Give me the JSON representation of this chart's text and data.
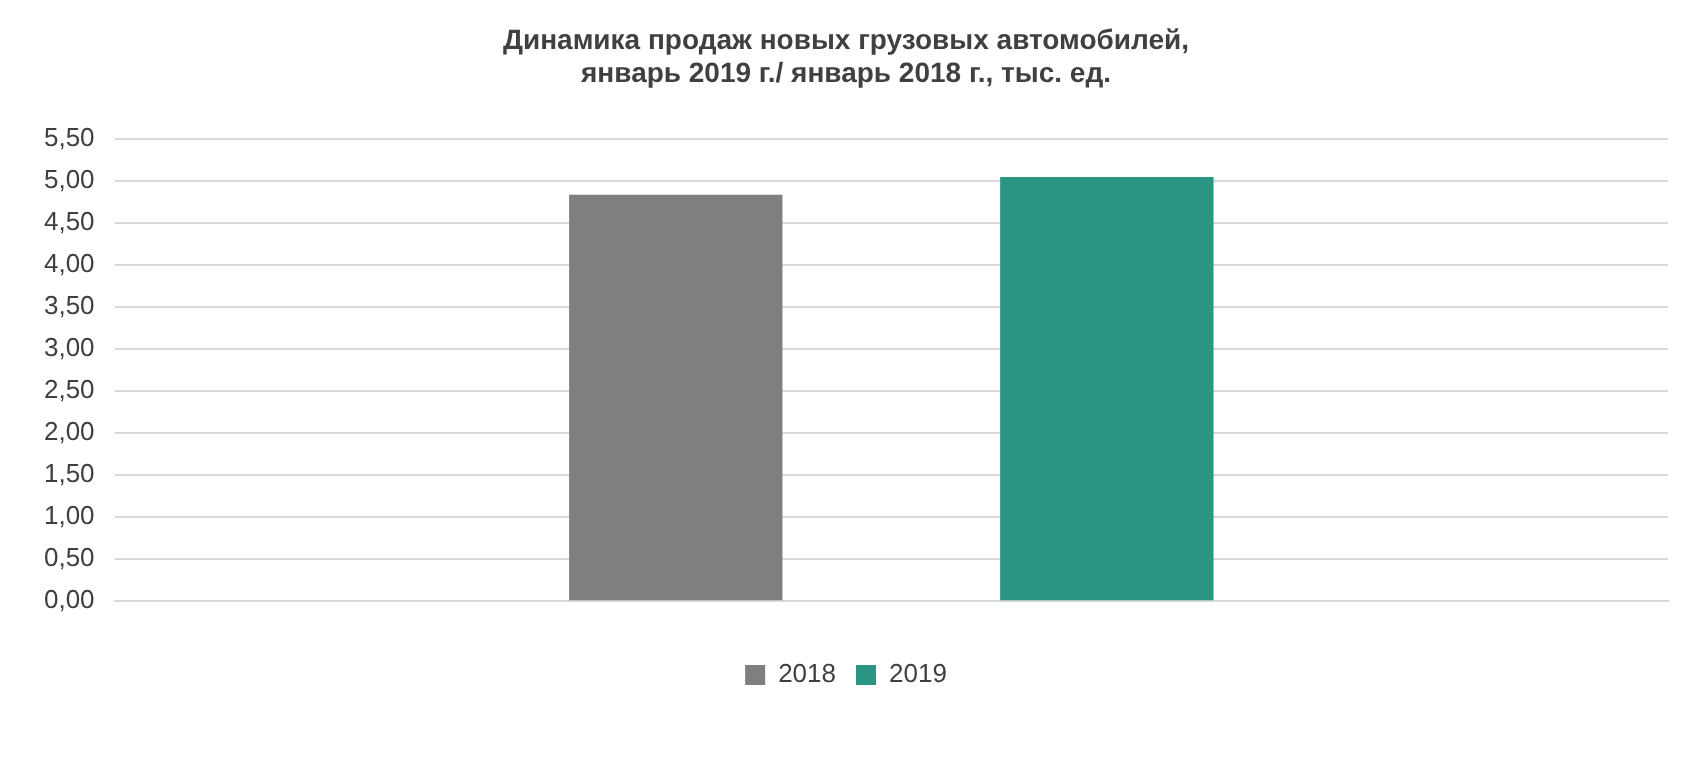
{
  "chart_data": {
    "type": "bar",
    "title": "Динамика продаж новых грузовых автомобилей,\nянварь 2019 г./ январь 2018 г., тыс. ед.",
    "categories": [
      null
    ],
    "series": [
      {
        "name": "2018",
        "color": "#7f7f7f",
        "values": [
          4.84
        ]
      },
      {
        "name": "2019",
        "color": "#2a9683",
        "values": [
          5.05
        ]
      }
    ],
    "ylim": [
      0,
      5.5
    ],
    "yticks": [
      {
        "value": 0,
        "label": "0,00"
      },
      {
        "value": 0.5,
        "label": "0,50"
      },
      {
        "value": 1,
        "label": "1,00"
      },
      {
        "value": 1.5,
        "label": "1,50"
      },
      {
        "value": 2,
        "label": "2,00"
      },
      {
        "value": 2.5,
        "label": "2,50"
      },
      {
        "value": 3,
        "label": "3,00"
      },
      {
        "value": 3.5,
        "label": "3,50"
      },
      {
        "value": 4,
        "label": "4,00"
      },
      {
        "value": 4.5,
        "label": "4,50"
      },
      {
        "value": 5,
        "label": "5,00"
      },
      {
        "value": 5.5,
        "label": "5,50"
      }
    ],
    "grid": "y",
    "legend": "bottom"
  }
}
